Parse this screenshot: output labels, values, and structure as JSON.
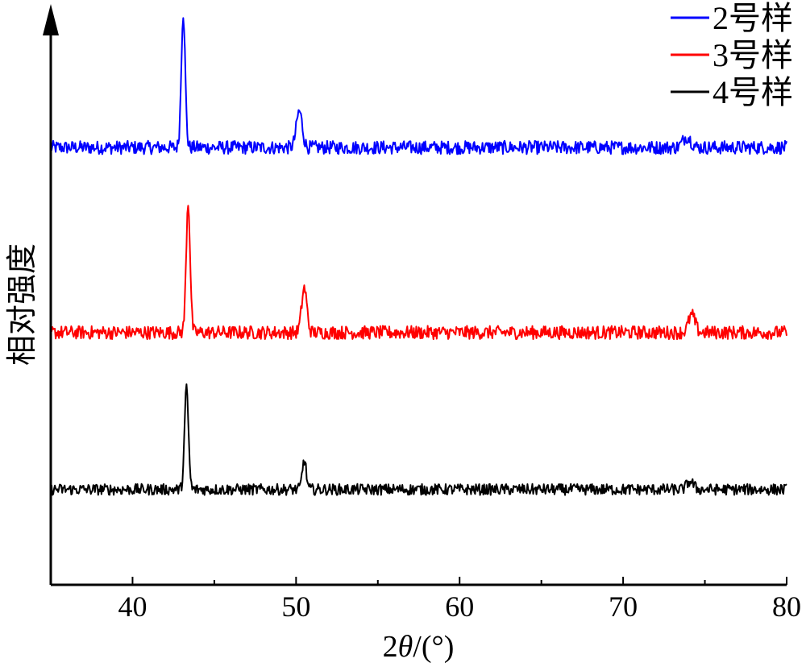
{
  "chart_data": {
    "type": "line",
    "xlabel_prefix": "2",
    "xlabel_symbol": "θ",
    "xlabel_suffix": "/(°)",
    "ylabel": "相对强度",
    "xlim": [
      35,
      80
    ],
    "xticks": [
      40,
      50,
      60,
      70,
      80
    ],
    "yticks_shown": false,
    "legend_position": "top-right",
    "series": [
      {
        "name": "2号样",
        "color": "#0000ff",
        "baseline": 0.78,
        "noise": 0.012,
        "peaks": [
          {
            "x": 43.1,
            "height": 1.0,
            "width": 0.12
          },
          {
            "x": 50.2,
            "height": 0.27,
            "width": 0.18
          },
          {
            "x": 73.9,
            "height": 0.08,
            "width": 0.25
          }
        ]
      },
      {
        "name": "3号样",
        "color": "#ff0000",
        "baseline": 0.45,
        "noise": 0.012,
        "peaks": [
          {
            "x": 43.4,
            "height": 0.97,
            "width": 0.12
          },
          {
            "x": 50.5,
            "height": 0.33,
            "width": 0.16
          },
          {
            "x": 74.2,
            "height": 0.13,
            "width": 0.2
          }
        ]
      },
      {
        "name": "4号样",
        "color": "#000000",
        "baseline": 0.17,
        "noise": 0.01,
        "peaks": [
          {
            "x": 43.3,
            "height": 0.75,
            "width": 0.12
          },
          {
            "x": 50.5,
            "height": 0.22,
            "width": 0.12
          },
          {
            "x": 74.1,
            "height": 0.06,
            "width": 0.2
          }
        ]
      }
    ]
  }
}
